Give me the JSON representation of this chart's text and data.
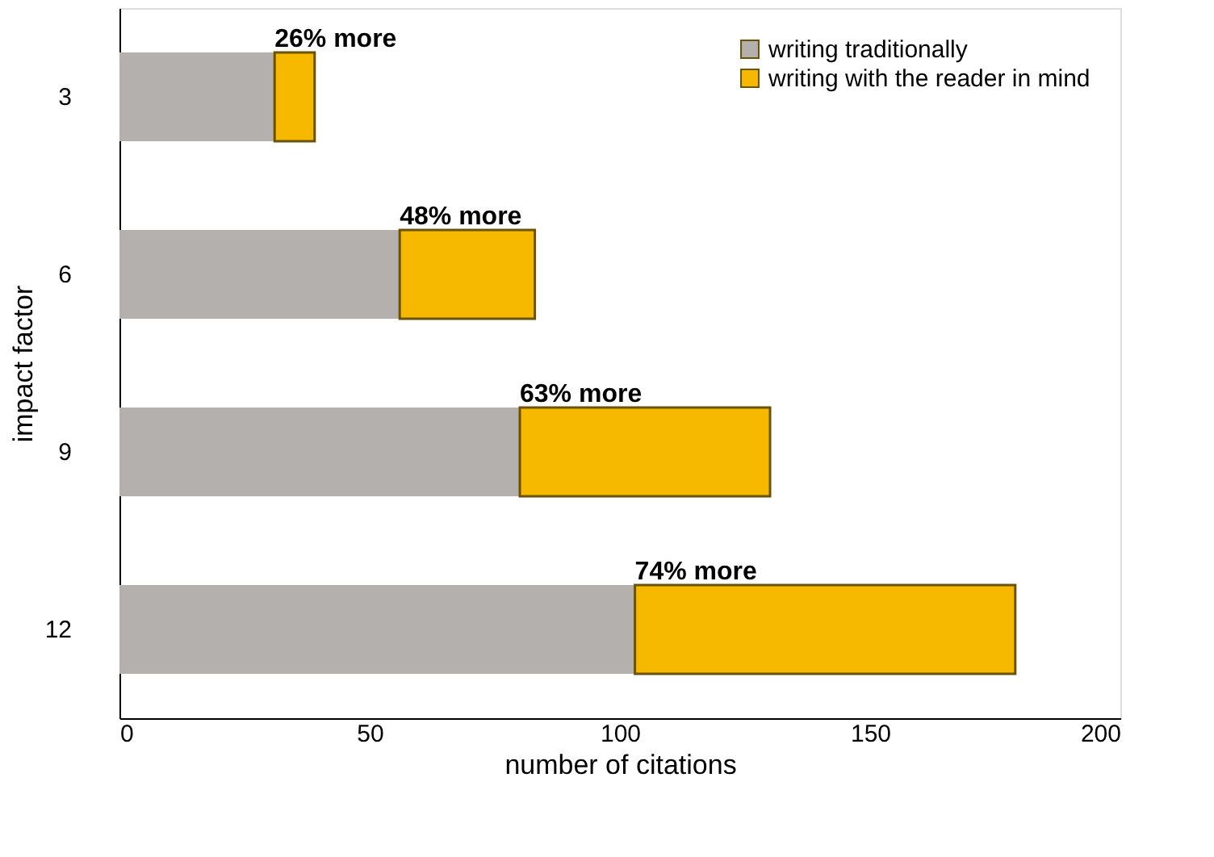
{
  "chart_data": {
    "type": "bar",
    "orientation": "horizontal",
    "stacked": true,
    "xlabel": "number of citations",
    "ylabel": "impact factor",
    "categories": [
      "3",
      "6",
      "9",
      "12"
    ],
    "series": [
      {
        "name": "writing traditionally",
        "color": "#b3b0ad",
        "values": [
          31,
          56,
          80,
          103
        ]
      },
      {
        "name": "writing with the reader in mind",
        "color": "#f7b900",
        "values": [
          8,
          27,
          50,
          76
        ]
      }
    ],
    "xlim": [
      0,
      200
    ],
    "xticks": [
      0,
      50,
      100,
      150,
      200
    ],
    "grid": false,
    "legend": "top right",
    "annotations": [
      {
        "text": "26% more",
        "x": 31,
        "y": "3"
      },
      {
        "text": "48% more",
        "x": 56,
        "y": "6"
      },
      {
        "text": "63% more",
        "x": 80,
        "y": "9"
      },
      {
        "text": "74% more",
        "x": 103,
        "y": "12"
      }
    ]
  }
}
